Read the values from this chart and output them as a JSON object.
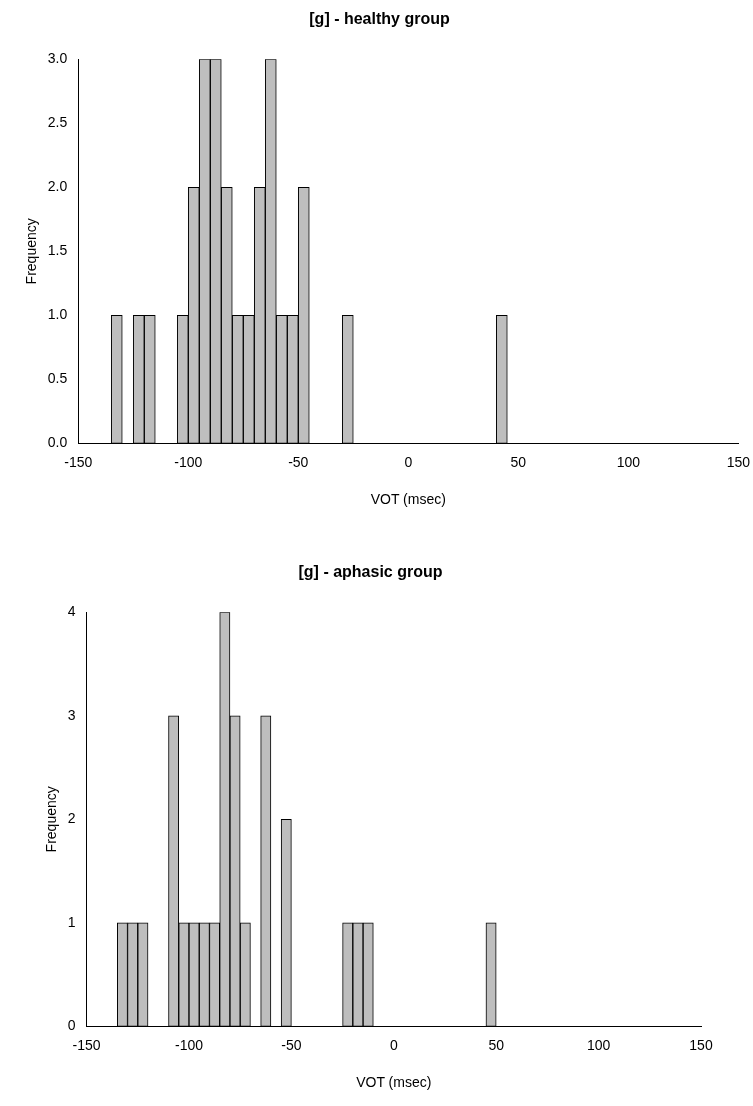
{
  "chart_data": [
    {
      "type": "histogram",
      "title": "[g] - healthy group",
      "xlabel": "VOT (msec)",
      "ylabel": "Frequency",
      "color": "#bebebe",
      "bins": [
        -135,
        -130,
        -125,
        -120,
        -115,
        -110,
        -105,
        -100,
        -95,
        -90,
        -85,
        -80,
        -75,
        -70,
        -65,
        -60,
        -55,
        -50,
        -45,
        -40,
        -35,
        -30,
        -25,
        -20,
        -15,
        -10,
        -5,
        0,
        5,
        10,
        15,
        20,
        25,
        30,
        35,
        40,
        45
      ],
      "values": [
        1,
        0,
        1,
        1,
        0,
        0,
        1,
        2,
        3,
        3,
        2,
        1,
        1,
        2,
        3,
        1,
        1,
        2,
        0,
        0,
        0,
        1,
        0,
        0,
        0,
        0,
        0,
        0,
        0,
        0,
        0,
        0,
        0,
        0,
        0,
        1
      ],
      "xlim": [
        -150,
        150
      ],
      "xticks": [
        -150,
        -100,
        -50,
        0,
        50,
        100,
        150
      ],
      "ylim": [
        0,
        3
      ],
      "yticks": [
        {
          "value": 0,
          "label": "0.0"
        },
        {
          "value": 0.5,
          "label": "0.5"
        },
        {
          "value": 1,
          "label": "1.0"
        },
        {
          "value": 1.5,
          "label": "1.5"
        },
        {
          "value": 2,
          "label": "2.0"
        },
        {
          "value": 2.5,
          "label": "2.5"
        },
        {
          "value": 3,
          "label": "3.0"
        }
      ]
    },
    {
      "type": "histogram",
      "title": "[g] - aphasic group",
      "xlabel": "VOT (msec)",
      "ylabel": "Frequency",
      "color": "#bebebe",
      "bins": [
        -135,
        -130,
        -125,
        -120,
        -115,
        -110,
        -105,
        -100,
        -95,
        -90,
        -85,
        -80,
        -75,
        -70,
        -65,
        -60,
        -55,
        -50,
        -45,
        -40,
        -35,
        -30,
        -25,
        -20,
        -15,
        -10,
        -5,
        0,
        5,
        10,
        15,
        20,
        25,
        30,
        35,
        40,
        45,
        50
      ],
      "values": [
        1,
        1,
        1,
        0,
        0,
        3,
        1,
        1,
        1,
        1,
        4,
        3,
        1,
        0,
        3,
        0,
        2,
        0,
        0,
        0,
        0,
        0,
        1,
        1,
        1,
        0,
        0,
        0,
        0,
        0,
        0,
        0,
        0,
        0,
        0,
        0,
        1
      ],
      "xlim": [
        -150,
        150
      ],
      "xticks": [
        -150,
        -100,
        -50,
        0,
        50,
        100,
        150
      ],
      "ylim": [
        0,
        4
      ],
      "yticks": [
        0,
        1,
        2,
        3,
        4
      ]
    }
  ]
}
